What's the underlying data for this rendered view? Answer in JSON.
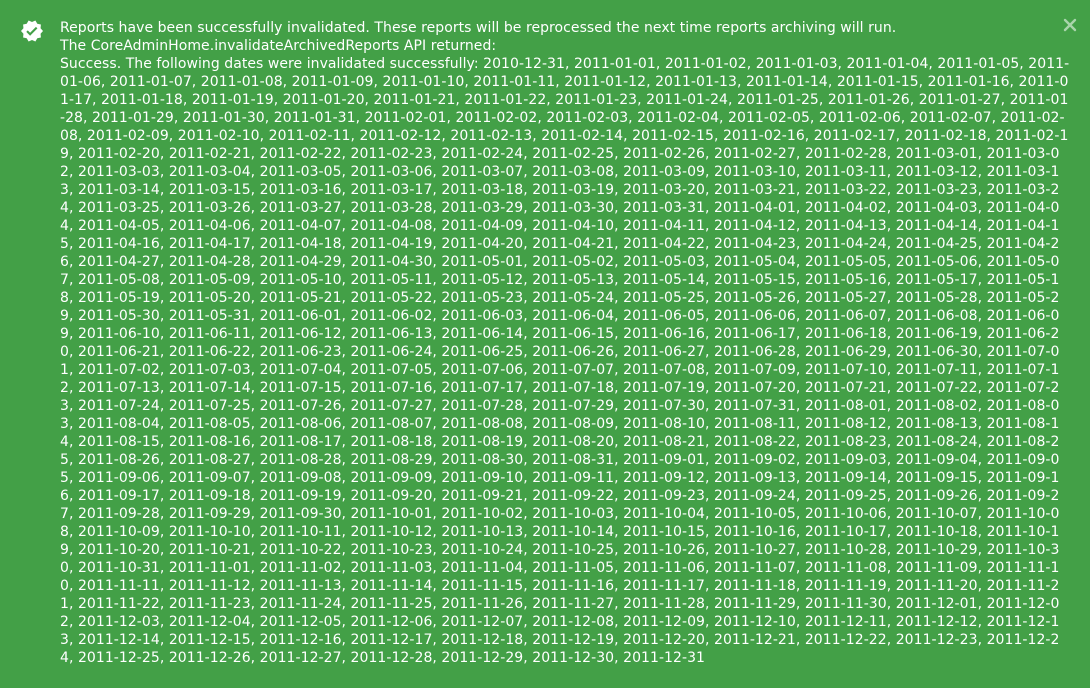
{
  "notification": {
    "type": "success",
    "colors": {
      "background": "#43a047",
      "text": "#ffffff"
    },
    "icons": {
      "status": "check-badge-icon",
      "close": "close-icon"
    },
    "line1": "Reports have been successfully invalidated. These reports will be reprocessed the next time reports archiving will run.",
    "line2": "The CoreAdminHome.invalidateArchivedReports API returned:",
    "result_prefix": "Success. The following dates were invalidated successfully: ",
    "dates": "2010-12-31, 2011-01-01, 2011-01-02, 2011-01-03, 2011-01-04, 2011-01-05, 2011-01-06, 2011-01-07, 2011-01-08, 2011-01-09, 2011-01-10, 2011-01-11, 2011-01-12, 2011-01-13, 2011-01-14, 2011-01-15, 2011-01-16, 2011-01-17, 2011-01-18, 2011-01-19, 2011-01-20, 2011-01-21, 2011-01-22, 2011-01-23, 2011-01-24, 2011-01-25, 2011-01-26, 2011-01-27, 2011-01-28, 2011-01-29, 2011-01-30, 2011-01-31, 2011-02-01, 2011-02-02, 2011-02-03, 2011-02-04, 2011-02-05, 2011-02-06, 2011-02-07, 2011-02-08, 2011-02-09, 2011-02-10, 2011-02-11, 2011-02-12, 2011-02-13, 2011-02-14, 2011-02-15, 2011-02-16, 2011-02-17, 2011-02-18, 2011-02-19, 2011-02-20, 2011-02-21, 2011-02-22, 2011-02-23, 2011-02-24, 2011-02-25, 2011-02-26, 2011-02-27, 2011-02-28, 2011-03-01, 2011-03-02, 2011-03-03, 2011-03-04, 2011-03-05, 2011-03-06, 2011-03-07, 2011-03-08, 2011-03-09, 2011-03-10, 2011-03-11, 2011-03-12, 2011-03-13, 2011-03-14, 2011-03-15, 2011-03-16, 2011-03-17, 2011-03-18, 2011-03-19, 2011-03-20, 2011-03-21, 2011-03-22, 2011-03-23, 2011-03-24, 2011-03-25, 2011-03-26, 2011-03-27, 2011-03-28, 2011-03-29, 2011-03-30, 2011-03-31, 2011-04-01, 2011-04-02, 2011-04-03, 2011-04-04, 2011-04-05, 2011-04-06, 2011-04-07, 2011-04-08, 2011-04-09, 2011-04-10, 2011-04-11, 2011-04-12, 2011-04-13, 2011-04-14, 2011-04-15, 2011-04-16, 2011-04-17, 2011-04-18, 2011-04-19, 2011-04-20, 2011-04-21, 2011-04-22, 2011-04-23, 2011-04-24, 2011-04-25, 2011-04-26, 2011-04-27, 2011-04-28, 2011-04-29, 2011-04-30, 2011-05-01, 2011-05-02, 2011-05-03, 2011-05-04, 2011-05-05, 2011-05-06, 2011-05-07, 2011-05-08, 2011-05-09, 2011-05-10, 2011-05-11, 2011-05-12, 2011-05-13, 2011-05-14, 2011-05-15, 2011-05-16, 2011-05-17, 2011-05-18, 2011-05-19, 2011-05-20, 2011-05-21, 2011-05-22, 2011-05-23, 2011-05-24, 2011-05-25, 2011-05-26, 2011-05-27, 2011-05-28, 2011-05-29, 2011-05-30, 2011-05-31, 2011-06-01, 2011-06-02, 2011-06-03, 2011-06-04, 2011-06-05, 2011-06-06, 2011-06-07, 2011-06-08, 2011-06-09, 2011-06-10, 2011-06-11, 2011-06-12, 2011-06-13, 2011-06-14, 2011-06-15, 2011-06-16, 2011-06-17, 2011-06-18, 2011-06-19, 2011-06-20, 2011-06-21, 2011-06-22, 2011-06-23, 2011-06-24, 2011-06-25, 2011-06-26, 2011-06-27, 2011-06-28, 2011-06-29, 2011-06-30, 2011-07-01, 2011-07-02, 2011-07-03, 2011-07-04, 2011-07-05, 2011-07-06, 2011-07-07, 2011-07-08, 2011-07-09, 2011-07-10, 2011-07-11, 2011-07-12, 2011-07-13, 2011-07-14, 2011-07-15, 2011-07-16, 2011-07-17, 2011-07-18, 2011-07-19, 2011-07-20, 2011-07-21, 2011-07-22, 2011-07-23, 2011-07-24, 2011-07-25, 2011-07-26, 2011-07-27, 2011-07-28, 2011-07-29, 2011-07-30, 2011-07-31, 2011-08-01, 2011-08-02, 2011-08-03, 2011-08-04, 2011-08-05, 2011-08-06, 2011-08-07, 2011-08-08, 2011-08-09, 2011-08-10, 2011-08-11, 2011-08-12, 2011-08-13, 2011-08-14, 2011-08-15, 2011-08-16, 2011-08-17, 2011-08-18, 2011-08-19, 2011-08-20, 2011-08-21, 2011-08-22, 2011-08-23, 2011-08-24, 2011-08-25, 2011-08-26, 2011-08-27, 2011-08-28, 2011-08-29, 2011-08-30, 2011-08-31, 2011-09-01, 2011-09-02, 2011-09-03, 2011-09-04, 2011-09-05, 2011-09-06, 2011-09-07, 2011-09-08, 2011-09-09, 2011-09-10, 2011-09-11, 2011-09-12, 2011-09-13, 2011-09-14, 2011-09-15, 2011-09-16, 2011-09-17, 2011-09-18, 2011-09-19, 2011-09-20, 2011-09-21, 2011-09-22, 2011-09-23, 2011-09-24, 2011-09-25, 2011-09-26, 2011-09-27, 2011-09-28, 2011-09-29, 2011-09-30, 2011-10-01, 2011-10-02, 2011-10-03, 2011-10-04, 2011-10-05, 2011-10-06, 2011-10-07, 2011-10-08, 2011-10-09, 2011-10-10, 2011-10-11, 2011-10-12, 2011-10-13, 2011-10-14, 2011-10-15, 2011-10-16, 2011-10-17, 2011-10-18, 2011-10-19, 2011-10-20, 2011-10-21, 2011-10-22, 2011-10-23, 2011-10-24, 2011-10-25, 2011-10-26, 2011-10-27, 2011-10-28, 2011-10-29, 2011-10-30, 2011-10-31, 2011-11-01, 2011-11-02, 2011-11-03, 2011-11-04, 2011-11-05, 2011-11-06, 2011-11-07, 2011-11-08, 2011-11-09, 2011-11-10, 2011-11-11, 2011-11-12, 2011-11-13, 2011-11-14, 2011-11-15, 2011-11-16, 2011-11-17, 2011-11-18, 2011-11-19, 2011-11-20, 2011-11-21, 2011-11-22, 2011-11-23, 2011-11-24, 2011-11-25, 2011-11-26, 2011-11-27, 2011-11-28, 2011-11-29, 2011-11-30, 2011-12-01, 2011-12-02, 2011-12-03, 2011-12-04, 2011-12-05, 2011-12-06, 2011-12-07, 2011-12-08, 2011-12-09, 2011-12-10, 2011-12-11, 2011-12-12, 2011-12-13, 2011-12-14, 2011-12-15, 2011-12-16, 2011-12-17, 2011-12-18, 2011-12-19, 2011-12-20, 2011-12-21, 2011-12-22, 2011-12-23, 2011-12-24, 2011-12-25, 2011-12-26, 2011-12-27, 2011-12-28, 2011-12-29, 2011-12-30, 2011-12-31"
  }
}
